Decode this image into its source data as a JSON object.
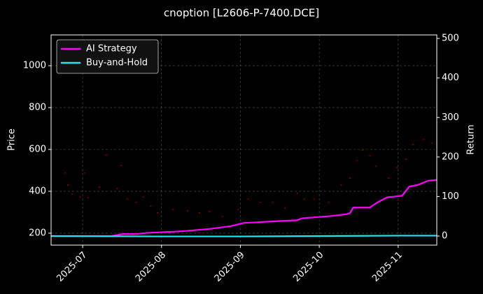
{
  "chart_data": {
    "type": "line",
    "title": "cnoption [L2606-P-7400.DCE]",
    "ylabel": "Price",
    "y2label": "Return",
    "xlim": [
      -0.4,
      4.49
    ],
    "xticks": [
      {
        "value": 0,
        "label": "2025-07"
      },
      {
        "value": 1,
        "label": "2025-08"
      },
      {
        "value": 2,
        "label": "2025-09"
      },
      {
        "value": 3,
        "label": "2025-10"
      },
      {
        "value": 4,
        "label": "2025-11"
      }
    ],
    "ylim": [
      143,
      1147
    ],
    "yticks": [
      200,
      400,
      600,
      800,
      1000
    ],
    "y2lim": [
      -23,
      509
    ],
    "y2ticks": [
      0,
      100,
      200,
      300,
      400,
      500
    ],
    "grid": true,
    "legend": "upper left",
    "price": {
      "color": "#b00000",
      "x": [
        -0.22,
        -0.19,
        -0.13,
        -0.03,
        0.02,
        0.07,
        0.21,
        0.3,
        0.44,
        0.49,
        0.57,
        0.68,
        0.77,
        0.86,
        0.95,
        1.15,
        1.33,
        1.48,
        1.61,
        1.77,
        1.97,
        2.1,
        2.25,
        2.41,
        2.57,
        2.72,
        2.81,
        2.93,
        3.12,
        3.28,
        3.39,
        3.48,
        3.55,
        3.64,
        3.72,
        3.88,
        3.99,
        4.1,
        4.19,
        4.32,
        4.43
      ],
      "values": [
        487,
        430,
        387,
        373,
        487,
        370,
        420,
        573,
        413,
        523,
        363,
        347,
        373,
        330,
        297,
        313,
        307,
        297,
        303,
        280,
        313,
        363,
        347,
        347,
        320,
        390,
        363,
        363,
        347,
        430,
        463,
        547,
        597,
        570,
        520,
        463,
        513,
        553,
        623,
        647,
        630
      ]
    },
    "series": [
      {
        "name": "AI Strategy",
        "color": "#ff00ff",
        "axis": "y2",
        "x": [
          -0.4,
          0.37,
          0.51,
          0.68,
          0.82,
          1.26,
          1.61,
          1.88,
          2.04,
          2.5,
          2.72,
          2.78,
          3.12,
          3.34,
          3.39,
          3.43,
          3.64,
          3.72,
          3.86,
          3.96,
          4.05,
          4.14,
          4.26,
          4.38,
          4.49
        ],
        "values": [
          0,
          0,
          5,
          5,
          8,
          12,
          18,
          25,
          33,
          38,
          40,
          45,
          50,
          55,
          58,
          72,
          72,
          83,
          98,
          100,
          102,
          125,
          130,
          140,
          142
        ]
      },
      {
        "name": "Buy-and-Hold",
        "color": "#22e5f0",
        "axis": "y2",
        "x": [
          -0.4,
          1.0,
          2.0,
          3.0,
          4.0,
          4.49
        ],
        "values": [
          0,
          -1,
          -1,
          0,
          1,
          1
        ]
      }
    ]
  }
}
